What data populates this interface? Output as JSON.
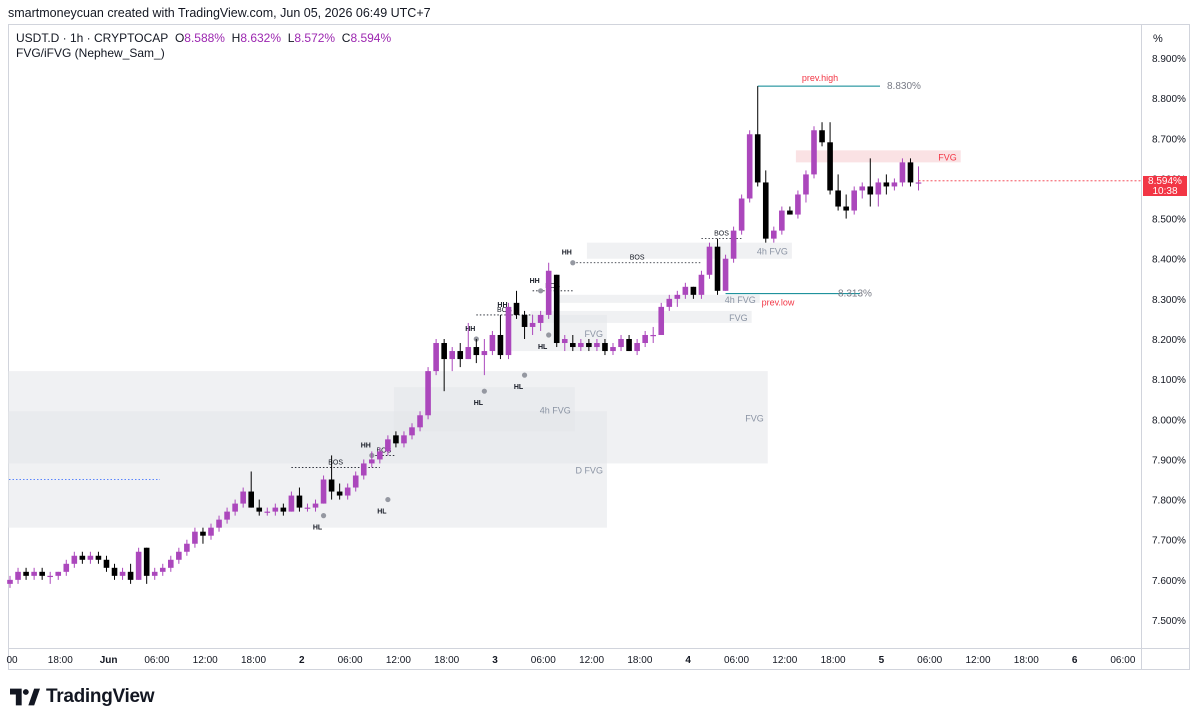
{
  "header": {
    "title": "smartmoneycuan created with TradingView.com, Jun 05, 2026 06:49 UTC+7"
  },
  "legend": {
    "symbol": "USDT.D · 1h · CRYPTOCAP",
    "o_label": "O",
    "o": "8.588%",
    "h_label": "H",
    "h": "8.632%",
    "l_label": "L",
    "l": "8.572%",
    "c_label": "C",
    "c": "8.594%",
    "indicator": "FVG/iFVG (Nephew_Sam_)"
  },
  "price_axis": {
    "unit": "%",
    "last_price": "8.594%",
    "countdown": "10:38"
  },
  "colors": {
    "up": "#ab47bc",
    "down": "#000000",
    "fvg_box": "#e3e6ea",
    "bearish_fvg": "#f9dfe1",
    "swing_line": "#00838f",
    "label_red": "#f23645",
    "badge": "#f23645"
  },
  "brand": {
    "name": "TradingView"
  },
  "chart_data": {
    "type": "candlestick",
    "title": "USDT.D · 1h · CRYPTOCAP",
    "ylim": [
      7.44,
      8.96
    ],
    "y_ticks": [
      "7.500%",
      "7.600%",
      "7.700%",
      "7.800%",
      "7.900%",
      "8.000%",
      "8.100%",
      "8.200%",
      "8.300%",
      "8.400%",
      "8.500%",
      "8.600%",
      "8.700%",
      "8.800%",
      "8.900%"
    ],
    "x_ticks": [
      "00",
      "18:00",
      "Jun",
      "06:00",
      "12:00",
      "18:00",
      "2",
      "06:00",
      "12:00",
      "18:00",
      "3",
      "06:00",
      "12:00",
      "18:00",
      "4",
      "06:00",
      "12:00",
      "18:00",
      "5",
      "06:00",
      "12:00",
      "18:00",
      "6",
      "06:00"
    ],
    "candles": [
      {
        "o": 7.59,
        "h": 7.61,
        "l": 7.58,
        "c": 7.6
      },
      {
        "o": 7.6,
        "h": 7.63,
        "l": 7.59,
        "c": 7.62
      },
      {
        "o": 7.62,
        "h": 7.63,
        "l": 7.6,
        "c": 7.61
      },
      {
        "o": 7.61,
        "h": 7.63,
        "l": 7.6,
        "c": 7.62
      },
      {
        "o": 7.62,
        "h": 7.63,
        "l": 7.6,
        "c": 7.61
      },
      {
        "o": 7.61,
        "h": 7.62,
        "l": 7.59,
        "c": 7.61
      },
      {
        "o": 7.61,
        "h": 7.62,
        "l": 7.6,
        "c": 7.62
      },
      {
        "o": 7.62,
        "h": 7.65,
        "l": 7.61,
        "c": 7.64
      },
      {
        "o": 7.64,
        "h": 7.67,
        "l": 7.63,
        "c": 7.66
      },
      {
        "o": 7.66,
        "h": 7.67,
        "l": 7.64,
        "c": 7.65
      },
      {
        "o": 7.65,
        "h": 7.67,
        "l": 7.64,
        "c": 7.66
      },
      {
        "o": 7.66,
        "h": 7.67,
        "l": 7.64,
        "c": 7.65
      },
      {
        "o": 7.65,
        "h": 7.66,
        "l": 7.62,
        "c": 7.63
      },
      {
        "o": 7.63,
        "h": 7.64,
        "l": 7.6,
        "c": 7.61
      },
      {
        "o": 7.61,
        "h": 7.63,
        "l": 7.6,
        "c": 7.62
      },
      {
        "o": 7.62,
        "h": 7.64,
        "l": 7.59,
        "c": 7.6
      },
      {
        "o": 7.6,
        "h": 7.68,
        "l": 7.6,
        "c": 7.67
      },
      {
        "o": 7.68,
        "h": 7.68,
        "l": 7.59,
        "c": 7.61
      },
      {
        "o": 7.61,
        "h": 7.63,
        "l": 7.6,
        "c": 7.62
      },
      {
        "o": 7.62,
        "h": 7.64,
        "l": 7.61,
        "c": 7.63
      },
      {
        "o": 7.63,
        "h": 7.66,
        "l": 7.62,
        "c": 7.65
      },
      {
        "o": 7.65,
        "h": 7.68,
        "l": 7.64,
        "c": 7.67
      },
      {
        "o": 7.67,
        "h": 7.7,
        "l": 7.66,
        "c": 7.69
      },
      {
        "o": 7.69,
        "h": 7.73,
        "l": 7.68,
        "c": 7.72
      },
      {
        "o": 7.72,
        "h": 7.73,
        "l": 7.69,
        "c": 7.71
      },
      {
        "o": 7.71,
        "h": 7.74,
        "l": 7.7,
        "c": 7.73
      },
      {
        "o": 7.73,
        "h": 7.76,
        "l": 7.72,
        "c": 7.75
      },
      {
        "o": 7.75,
        "h": 7.78,
        "l": 7.74,
        "c": 7.77
      },
      {
        "o": 7.77,
        "h": 7.8,
        "l": 7.76,
        "c": 7.79
      },
      {
        "o": 7.79,
        "h": 7.83,
        "l": 7.78,
        "c": 7.82
      },
      {
        "o": 7.82,
        "h": 7.87,
        "l": 7.78,
        "c": 7.78
      },
      {
        "o": 7.78,
        "h": 7.8,
        "l": 7.76,
        "c": 7.77
      },
      {
        "o": 7.77,
        "h": 7.78,
        "l": 7.76,
        "c": 7.77
      },
      {
        "o": 7.77,
        "h": 7.79,
        "l": 7.76,
        "c": 7.78
      },
      {
        "o": 7.78,
        "h": 7.79,
        "l": 7.76,
        "c": 7.77
      },
      {
        "o": 7.77,
        "h": 7.82,
        "l": 7.77,
        "c": 7.81
      },
      {
        "o": 7.81,
        "h": 7.83,
        "l": 7.77,
        "c": 7.78
      },
      {
        "o": 7.78,
        "h": 7.79,
        "l": 7.77,
        "c": 7.78
      },
      {
        "o": 7.78,
        "h": 7.8,
        "l": 7.77,
        "c": 7.79
      },
      {
        "o": 7.79,
        "h": 7.86,
        "l": 7.79,
        "c": 7.85
      },
      {
        "o": 7.85,
        "h": 7.91,
        "l": 7.8,
        "c": 7.82
      },
      {
        "o": 7.82,
        "h": 7.84,
        "l": 7.8,
        "c": 7.81
      },
      {
        "o": 7.81,
        "h": 7.84,
        "l": 7.8,
        "c": 7.83
      },
      {
        "o": 7.83,
        "h": 7.87,
        "l": 7.82,
        "c": 7.86
      },
      {
        "o": 7.86,
        "h": 7.9,
        "l": 7.85,
        "c": 7.89
      },
      {
        "o": 7.89,
        "h": 7.92,
        "l": 7.88,
        "c": 7.9
      },
      {
        "o": 7.9,
        "h": 7.93,
        "l": 7.89,
        "c": 7.92
      },
      {
        "o": 7.92,
        "h": 7.96,
        "l": 7.91,
        "c": 7.95
      },
      {
        "o": 7.96,
        "h": 7.97,
        "l": 7.93,
        "c": 7.94
      },
      {
        "o": 7.94,
        "h": 7.97,
        "l": 7.93,
        "c": 7.96
      },
      {
        "o": 7.96,
        "h": 7.99,
        "l": 7.95,
        "c": 7.98
      },
      {
        "o": 7.98,
        "h": 8.02,
        "l": 7.97,
        "c": 8.01
      },
      {
        "o": 8.01,
        "h": 8.13,
        "l": 8.0,
        "c": 8.12
      },
      {
        "o": 8.12,
        "h": 8.2,
        "l": 8.11,
        "c": 8.19
      },
      {
        "o": 8.19,
        "h": 8.2,
        "l": 8.07,
        "c": 8.15
      },
      {
        "o": 8.15,
        "h": 8.18,
        "l": 8.12,
        "c": 8.17
      },
      {
        "o": 8.17,
        "h": 8.19,
        "l": 8.13,
        "c": 8.15
      },
      {
        "o": 8.15,
        "h": 8.24,
        "l": 8.15,
        "c": 8.18
      },
      {
        "o": 8.18,
        "h": 8.2,
        "l": 8.14,
        "c": 8.16
      },
      {
        "o": 8.16,
        "h": 8.2,
        "l": 8.11,
        "c": 8.17
      },
      {
        "o": 8.17,
        "h": 8.22,
        "l": 8.16,
        "c": 8.21
      },
      {
        "o": 8.21,
        "h": 8.26,
        "l": 8.15,
        "c": 8.16
      },
      {
        "o": 8.16,
        "h": 8.29,
        "l": 8.15,
        "c": 8.28
      },
      {
        "o": 8.29,
        "h": 8.32,
        "l": 8.25,
        "c": 8.26
      },
      {
        "o": 8.26,
        "h": 8.27,
        "l": 8.2,
        "c": 8.23
      },
      {
        "o": 8.23,
        "h": 8.26,
        "l": 8.21,
        "c": 8.24
      },
      {
        "o": 8.24,
        "h": 8.27,
        "l": 8.22,
        "c": 8.26
      },
      {
        "o": 8.26,
        "h": 8.39,
        "l": 8.25,
        "c": 8.37
      },
      {
        "o": 8.36,
        "h": 8.36,
        "l": 8.18,
        "c": 8.19
      },
      {
        "o": 8.19,
        "h": 8.21,
        "l": 8.17,
        "c": 8.2
      },
      {
        "o": 8.19,
        "h": 8.21,
        "l": 8.17,
        "c": 8.18
      },
      {
        "o": 8.18,
        "h": 8.2,
        "l": 8.17,
        "c": 8.19
      },
      {
        "o": 8.19,
        "h": 8.2,
        "l": 8.17,
        "c": 8.18
      },
      {
        "o": 8.18,
        "h": 8.2,
        "l": 8.17,
        "c": 8.19
      },
      {
        "o": 8.19,
        "h": 8.2,
        "l": 8.16,
        "c": 8.17
      },
      {
        "o": 8.17,
        "h": 8.19,
        "l": 8.16,
        "c": 8.18
      },
      {
        "o": 8.18,
        "h": 8.21,
        "l": 8.17,
        "c": 8.2
      },
      {
        "o": 8.2,
        "h": 8.21,
        "l": 8.17,
        "c": 8.17
      },
      {
        "o": 8.17,
        "h": 8.2,
        "l": 8.16,
        "c": 8.19
      },
      {
        "o": 8.19,
        "h": 8.22,
        "l": 8.18,
        "c": 8.21
      },
      {
        "o": 8.21,
        "h": 8.23,
        "l": 8.19,
        "c": 8.21
      },
      {
        "o": 8.21,
        "h": 8.29,
        "l": 8.21,
        "c": 8.28
      },
      {
        "o": 8.28,
        "h": 8.31,
        "l": 8.27,
        "c": 8.3
      },
      {
        "o": 8.3,
        "h": 8.32,
        "l": 8.28,
        "c": 8.31
      },
      {
        "o": 8.31,
        "h": 8.34,
        "l": 8.3,
        "c": 8.33
      },
      {
        "o": 8.33,
        "h": 8.33,
        "l": 8.3,
        "c": 8.31
      },
      {
        "o": 8.31,
        "h": 8.37,
        "l": 8.3,
        "c": 8.36
      },
      {
        "o": 8.36,
        "h": 8.44,
        "l": 8.35,
        "c": 8.43
      },
      {
        "o": 8.43,
        "h": 8.45,
        "l": 8.31,
        "c": 8.32
      },
      {
        "o": 8.32,
        "h": 8.41,
        "l": 8.32,
        "c": 8.4
      },
      {
        "o": 8.4,
        "h": 8.48,
        "l": 8.39,
        "c": 8.47
      },
      {
        "o": 8.47,
        "h": 8.56,
        "l": 8.46,
        "c": 8.55
      },
      {
        "o": 8.55,
        "h": 8.72,
        "l": 8.54,
        "c": 8.71
      },
      {
        "o": 8.71,
        "h": 8.83,
        "l": 8.58,
        "c": 8.59
      },
      {
        "o": 8.59,
        "h": 8.62,
        "l": 8.44,
        "c": 8.45
      },
      {
        "o": 8.45,
        "h": 8.48,
        "l": 8.44,
        "c": 8.47
      },
      {
        "o": 8.47,
        "h": 8.53,
        "l": 8.46,
        "c": 8.52
      },
      {
        "o": 8.52,
        "h": 8.53,
        "l": 8.51,
        "c": 8.51
      },
      {
        "o": 8.51,
        "h": 8.57,
        "l": 8.5,
        "c": 8.56
      },
      {
        "o": 8.56,
        "h": 8.62,
        "l": 8.54,
        "c": 8.61
      },
      {
        "o": 8.61,
        "h": 8.73,
        "l": 8.6,
        "c": 8.72
      },
      {
        "o": 8.72,
        "h": 8.74,
        "l": 8.68,
        "c": 8.69
      },
      {
        "o": 8.69,
        "h": 8.74,
        "l": 8.56,
        "c": 8.57
      },
      {
        "o": 8.57,
        "h": 8.61,
        "l": 8.52,
        "c": 8.53
      },
      {
        "o": 8.53,
        "h": 8.56,
        "l": 8.5,
        "c": 8.52
      },
      {
        "o": 8.52,
        "h": 8.58,
        "l": 8.51,
        "c": 8.57
      },
      {
        "o": 8.57,
        "h": 8.59,
        "l": 8.55,
        "c": 8.58
      },
      {
        "o": 8.58,
        "h": 8.65,
        "l": 8.53,
        "c": 8.56
      },
      {
        "o": 8.56,
        "h": 8.6,
        "l": 8.53,
        "c": 8.59
      },
      {
        "o": 8.59,
        "h": 8.61,
        "l": 8.56,
        "c": 8.58
      },
      {
        "o": 8.58,
        "h": 8.6,
        "l": 8.57,
        "c": 8.59
      },
      {
        "o": 8.59,
        "h": 8.65,
        "l": 8.58,
        "c": 8.64
      },
      {
        "o": 8.64,
        "h": 8.65,
        "l": 8.58,
        "c": 8.59
      },
      {
        "o": 8.59,
        "h": 8.63,
        "l": 8.57,
        "c": 8.59
      }
    ],
    "fvg_zones": [
      {
        "label": "D FVG",
        "from": 0,
        "to": 74,
        "top": 8.02,
        "bottom": 7.73
      },
      {
        "label": "FVG",
        "from": 0,
        "to": 94,
        "top": 8.12,
        "bottom": 7.89
      },
      {
        "label": "4h FVG",
        "from": 48,
        "to": 70,
        "top": 8.08,
        "bottom": 7.97
      },
      {
        "label": "FVG",
        "from": 62,
        "to": 74,
        "top": 8.26,
        "bottom": 8.17
      },
      {
        "label": "FVG",
        "from": 65,
        "to": 92,
        "top": 8.27,
        "bottom": 8.24
      },
      {
        "label": "4h FVG",
        "from": 72,
        "to": 97,
        "top": 8.44,
        "bottom": 8.4
      },
      {
        "label": "4h FVG",
        "from": 68,
        "to": 93,
        "top": 8.31,
        "bottom": 8.29
      },
      {
        "label": "FVG",
        "from": 98,
        "to": 118,
        "top": 8.67,
        "bottom": 8.64
      }
    ],
    "annotations": [
      {
        "label": "prev.high",
        "value": "8.830%"
      },
      {
        "label": "prev.low",
        "value": "8.313%"
      },
      {
        "label": "BOS"
      },
      {
        "label": "HH"
      },
      {
        "label": "HL"
      }
    ]
  }
}
